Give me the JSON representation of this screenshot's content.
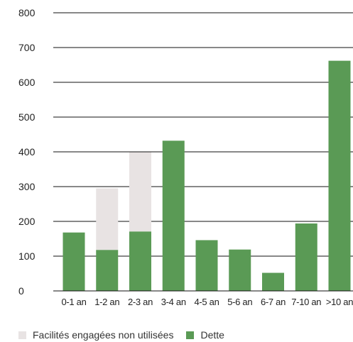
{
  "chart_data": {
    "type": "bar",
    "stacked": true,
    "categories": [
      "0-1 an",
      "1-2 an",
      "2-3 an",
      "3-4 an",
      "4-5 an",
      "5-6 an",
      "6-7 an",
      "7-10 an",
      ">10 an"
    ],
    "series": [
      {
        "name": "Dette",
        "color": "#5a9a55",
        "values": [
          168,
          118,
          171,
          432,
          146,
          119,
          52,
          194,
          662
        ]
      },
      {
        "name": "Facilités engagées non utilisées",
        "color": "#e8e3e3",
        "values": [
          0,
          177,
          228,
          0,
          0,
          0,
          0,
          0,
          0
        ]
      }
    ],
    "yticks": [
      "0",
      "100",
      "200",
      "300",
      "400",
      "500",
      "600",
      "700",
      "800"
    ],
    "ylim": [
      0,
      800
    ],
    "grid": true,
    "legend_position": "bottom",
    "title": "",
    "xlabel": "",
    "ylabel": ""
  },
  "legend": [
    {
      "label": "Facilités engagées non utilisées",
      "color": "#e8e3e3"
    },
    {
      "label": "Dette",
      "color": "#5a9a55"
    }
  ]
}
